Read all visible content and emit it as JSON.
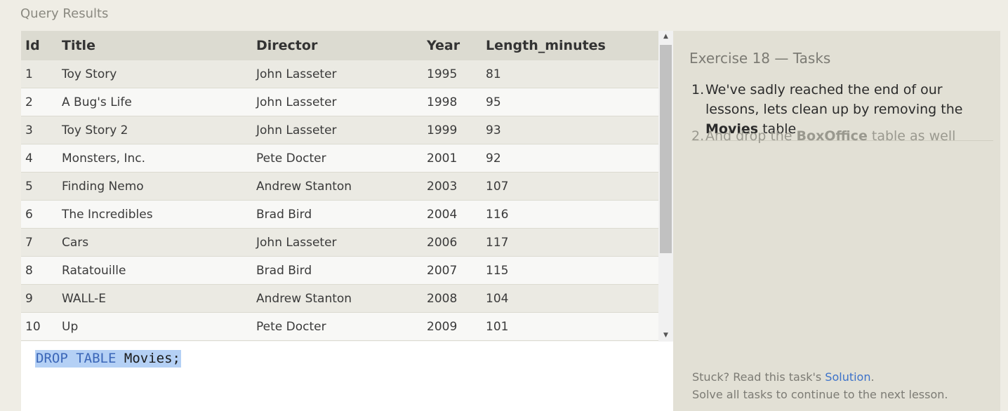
{
  "section_title": "Query Results",
  "table": {
    "columns": [
      "Id",
      "Title",
      "Director",
      "Year",
      "Length_minutes"
    ],
    "rows": [
      [
        "1",
        "Toy Story",
        "John Lasseter",
        "1995",
        "81"
      ],
      [
        "2",
        "A Bug's Life",
        "John Lasseter",
        "1998",
        "95"
      ],
      [
        "3",
        "Toy Story 2",
        "John Lasseter",
        "1999",
        "93"
      ],
      [
        "4",
        "Monsters, Inc.",
        "Pete Docter",
        "2001",
        "92"
      ],
      [
        "5",
        "Finding Nemo",
        "Andrew Stanton",
        "2003",
        "107"
      ],
      [
        "6",
        "The Incredibles",
        "Brad Bird",
        "2004",
        "116"
      ],
      [
        "7",
        "Cars",
        "John Lasseter",
        "2006",
        "117"
      ],
      [
        "8",
        "Ratatouille",
        "Brad Bird",
        "2007",
        "115"
      ],
      [
        "9",
        "WALL-E",
        "Andrew Stanton",
        "2008",
        "104"
      ],
      [
        "10",
        "Up",
        "Pete Docter",
        "2009",
        "101"
      ]
    ]
  },
  "editor": {
    "kw_drop": "DROP",
    "kw_table": "TABLE",
    "rest": "Movies;"
  },
  "tasks": {
    "title": "Exercise 18 — Tasks",
    "items": [
      {
        "number": "1.",
        "text_before": "We've sadly reached the end of our lessons, lets clean up by removing the",
        "bold": "Movies",
        "text_after": "table"
      },
      {
        "number": "2.",
        "text_before": "And drop the",
        "bold": "BoxOffice",
        "text_after": "table as well"
      }
    ],
    "footer_line1_prefix": "Stuck? Read this task's",
    "footer_link": "Solution",
    "footer_line1_suffix": ".",
    "footer_line2": "Solve all tasks to continue to the next lesson."
  },
  "icons": {
    "scroll_up": "triangle-up",
    "scroll_down": "triangle-down"
  },
  "colors": {
    "header_bg": "#dcdbd1",
    "selection": "#b4d0f5",
    "keyword": "#3b66b8",
    "link": "#3d72c9"
  }
}
